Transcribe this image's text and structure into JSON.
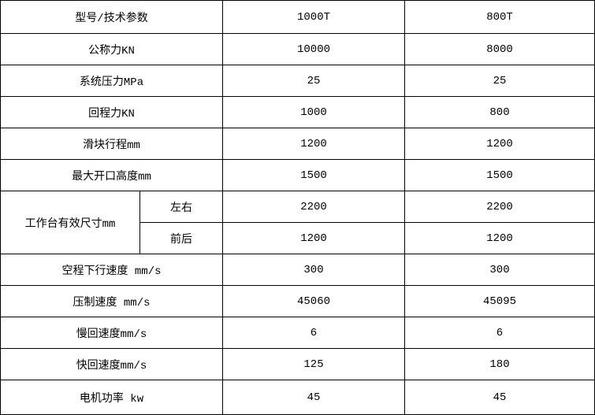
{
  "table": {
    "header": {
      "label": "型号/技术参数",
      "model_a": "1000T",
      "model_b": "800T"
    },
    "rows_top": [
      {
        "label": "公称力KN",
        "a": "10000",
        "b": "8000"
      },
      {
        "label": "系统压力MPa",
        "a": "25",
        "b": "25"
      },
      {
        "label": "回程力KN",
        "a": "1000",
        "b": "800"
      },
      {
        "label": "滑块行程mm",
        "a": "1200",
        "b": "1200"
      },
      {
        "label": "最大开口高度mm",
        "a": "1500",
        "b": "1500"
      }
    ],
    "group": {
      "label": "工作台有效尺寸mm",
      "subrows": [
        {
          "sublabel": "左右",
          "a": "2200",
          "b": "2200"
        },
        {
          "sublabel": "前后",
          "a": "1200",
          "b": "1200"
        }
      ]
    },
    "rows_bottom": [
      {
        "label": "空程下行速度 mm/s",
        "a": "300",
        "b": "300"
      },
      {
        "label": "压制速度 mm/s",
        "a": "45060",
        "b": "45095"
      },
      {
        "label": "慢回速度mm/s",
        "a": "6",
        "b": "6"
      },
      {
        "label": "快回速度mm/s",
        "a": "125",
        "b": "180"
      },
      {
        "label": "电机功率 kw",
        "a": "45",
        "b": "45"
      }
    ],
    "colors": {
      "grid": "#000000",
      "background": "#ffffff",
      "text": "#000000"
    }
  }
}
